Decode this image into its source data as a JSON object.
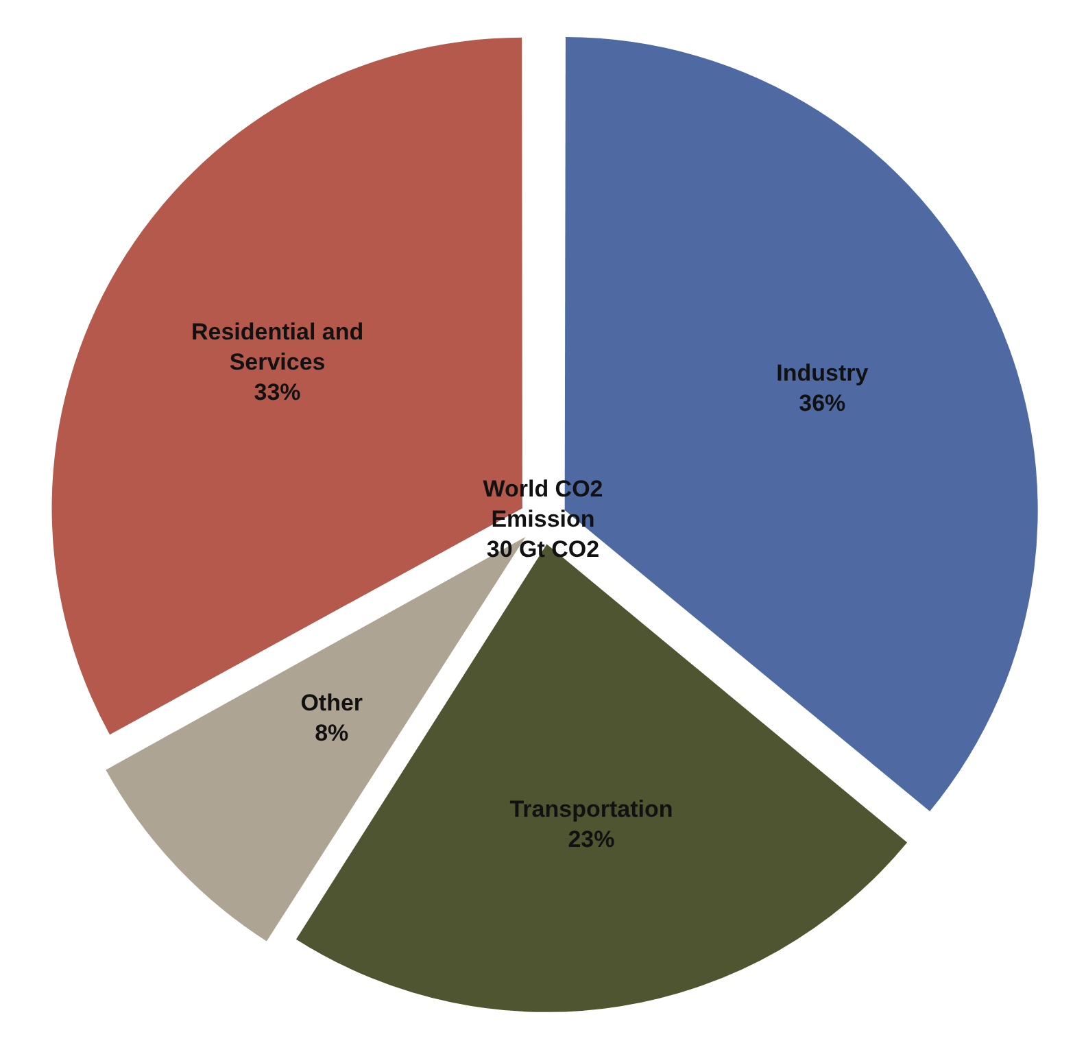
{
  "chart_data": {
    "type": "pie",
    "title": "World CO2 Emission 30 Gt CO2",
    "categories": [
      "Industry",
      "Transportation",
      "Other",
      "Residential and Services"
    ],
    "values": [
      36,
      23,
      8,
      33
    ],
    "colors": [
      "#4f6aa3",
      "#4e5530",
      "#aea493",
      "#b4594c"
    ],
    "value_labels": [
      "36%",
      "23%",
      "8%",
      "33%"
    ],
    "legend": false
  }
}
